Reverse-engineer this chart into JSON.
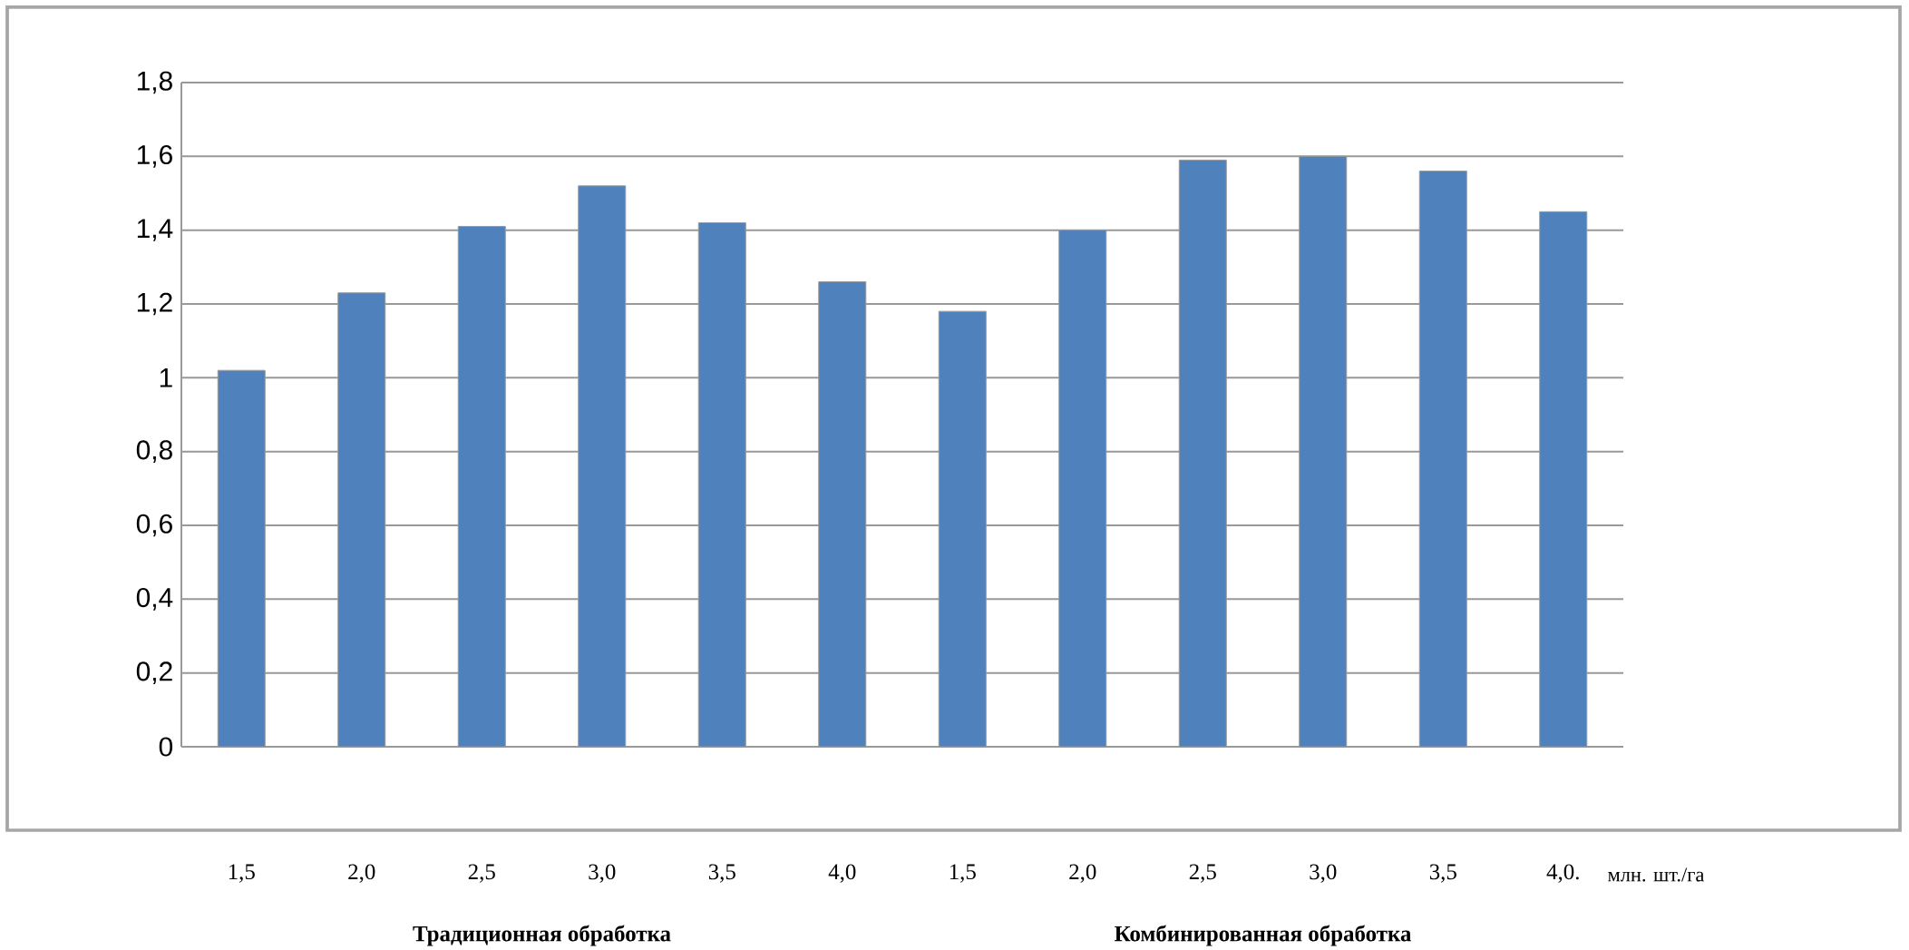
{
  "chart_data": {
    "type": "bar",
    "categories": [
      "1,5",
      "2,0",
      "2,5",
      "3,0",
      "3,5",
      "4,0",
      "1,5",
      "2,0",
      "2,5",
      "3,0",
      "3,5",
      "4,0."
    ],
    "values": [
      1.02,
      1.23,
      1.41,
      1.52,
      1.42,
      1.26,
      1.18,
      1.4,
      1.59,
      1.6,
      1.56,
      1.45
    ],
    "color": "#4f81bd",
    "ylim": [
      0,
      1.8
    ],
    "yticks": [
      {
        "value": 0,
        "label": "0"
      },
      {
        "value": 0.2,
        "label": "0,2"
      },
      {
        "value": 0.4,
        "label": "0,4"
      },
      {
        "value": 0.6,
        "label": "0,6"
      },
      {
        "value": 0.8,
        "label": "0,8"
      },
      {
        "value": 1,
        "label": "1"
      },
      {
        "value": 1.2,
        "label": "1,2"
      },
      {
        "value": 1.4,
        "label": "1,4"
      },
      {
        "value": 1.6,
        "label": "1,6"
      },
      {
        "value": 1.8,
        "label": "1,8"
      }
    ],
    "grid": "y",
    "xlabel": "млн. шт./га",
    "annotations": [
      "Традиционная обработка",
      "Комбинированная обработка"
    ]
  }
}
